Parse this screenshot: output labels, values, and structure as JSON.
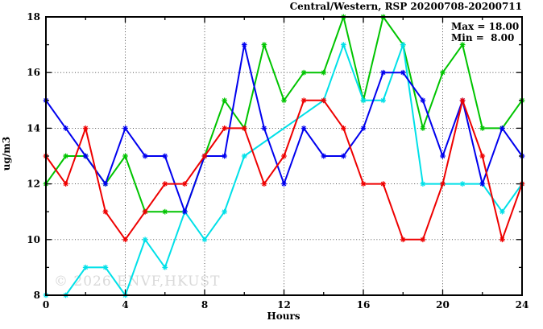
{
  "title": "Central/Western, RSP 20200708-20200711",
  "annotation": {
    "max_label": "Max = 18.00",
    "min_label": "Min =  8.00"
  },
  "watermark": "© 2026 ENVF,HKUST",
  "chart_data": {
    "type": "line",
    "title": "Central/Western, RSP 20200708-20200711",
    "xlabel": "Hours",
    "ylabel": "ug/m3",
    "xlim": [
      0,
      24
    ],
    "ylim": [
      8,
      18
    ],
    "x_major_ticks": [
      0,
      4,
      8,
      12,
      16,
      20,
      24
    ],
    "x_minor_ticks": [
      2,
      6,
      10,
      14,
      18,
      22
    ],
    "y_major_ticks": [
      8,
      10,
      12,
      14,
      16,
      18
    ],
    "y_minor_ticks": [
      9,
      11,
      13,
      15,
      17
    ],
    "x_gridlines": [
      4,
      8,
      12,
      16,
      20
    ],
    "y_gridlines": [
      10,
      12,
      14,
      16
    ],
    "grid_style": "dotted",
    "legend": "none",
    "x": [
      0,
      1,
      2,
      3,
      4,
      5,
      6,
      7,
      8,
      9,
      10,
      11,
      12,
      13,
      14,
      15,
      16,
      17,
      18,
      19,
      20,
      21,
      22,
      23,
      24
    ],
    "series": [
      {
        "name": "green-line",
        "color": "#00c400",
        "values": [
          12,
          13,
          13,
          12,
          13,
          11,
          11,
          11,
          13,
          15,
          14,
          17,
          15,
          16,
          16,
          18,
          15,
          18,
          17,
          14,
          16,
          17,
          14,
          14,
          15
        ]
      },
      {
        "name": "cyan-line",
        "color": "#00e0e8",
        "values": [
          8,
          8,
          9,
          9,
          8,
          10,
          9,
          11,
          10,
          11,
          13,
          null,
          null,
          null,
          15,
          17,
          15,
          15,
          17,
          12,
          12,
          12,
          12,
          11,
          12
        ]
      },
      {
        "name": "blue-line",
        "color": "#0000ee",
        "values": [
          15,
          14,
          13,
          12,
          14,
          13,
          13,
          11,
          13,
          13,
          17,
          14,
          12,
          14,
          13,
          13,
          14,
          16,
          16,
          15,
          13,
          15,
          12,
          14,
          13
        ]
      },
      {
        "name": "red-line",
        "color": "#ee0000",
        "values": [
          13,
          12,
          14,
          11,
          10,
          11,
          12,
          12,
          13,
          14,
          14,
          12,
          13,
          15,
          15,
          14,
          12,
          12,
          10,
          10,
          12,
          15,
          13,
          10,
          12
        ]
      }
    ],
    "stats": {
      "max": 18.0,
      "min": 8.0
    }
  }
}
